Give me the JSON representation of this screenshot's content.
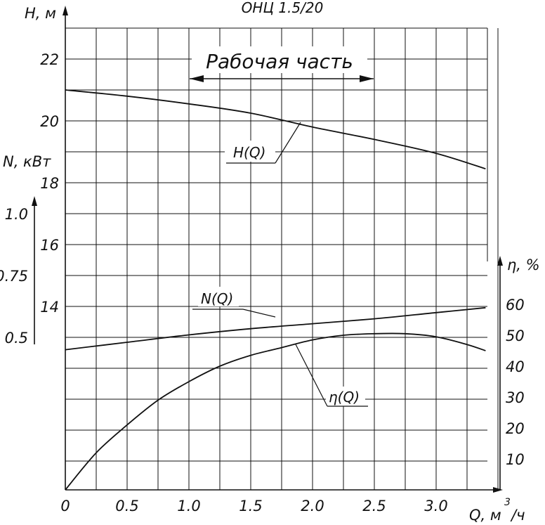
{
  "chart_data": {
    "type": "line",
    "title": "ОНЦ 1.5/20",
    "xlabel": "Q, м³/ч",
    "xlabel_main": "Q, м",
    "xlabel_sup": "3",
    "xlabel_tail": "/ч",
    "x_ticks": [
      "0",
      "0.5",
      "1.0",
      "1.5",
      "2.0",
      "2.5",
      "3.0"
    ],
    "xlim": [
      0,
      3.5
    ],
    "axes": {
      "H": {
        "label": "Н, м",
        "ticks": [
          "14",
          "16",
          "18",
          "20",
          "22"
        ],
        "lim": [
          10,
          23.5
        ]
      },
      "N": {
        "label": "N, кВт",
        "ticks": [
          "0.5",
          "0.75",
          "1.0"
        ],
        "lim": [
          0,
          1.05
        ]
      },
      "eta": {
        "label": "η, %",
        "ticks": [
          "10",
          "20",
          "30",
          "40",
          "50",
          "60"
        ],
        "lim": [
          0,
          70
        ]
      }
    },
    "working_range": {
      "label": "Рабочая часть",
      "from": 1.0,
      "to": 2.5
    },
    "series": [
      {
        "name": "H(Q)",
        "axis": "H",
        "x": [
          0,
          0.5,
          1.0,
          1.5,
          2.0,
          2.5,
          3.0,
          3.4
        ],
        "y": [
          21.0,
          20.8,
          20.55,
          20.25,
          19.8,
          19.4,
          18.95,
          18.45
        ]
      },
      {
        "name": "N(Q)",
        "axis": "N",
        "x": [
          0,
          0.5,
          1.0,
          1.5,
          2.0,
          2.5,
          3.0,
          3.4
        ],
        "y": [
          0.45,
          0.48,
          0.51,
          0.535,
          0.555,
          0.575,
          0.6,
          0.62
        ]
      },
      {
        "name": "η(Q)",
        "axis": "eta",
        "x": [
          0,
          0.25,
          0.5,
          0.75,
          1.0,
          1.25,
          1.5,
          1.75,
          2.0,
          2.25,
          2.5,
          2.75,
          3.0,
          3.25,
          3.4
        ],
        "y": [
          0,
          12,
          21,
          29,
          35,
          40,
          43.5,
          46,
          48.5,
          50,
          50.5,
          50.5,
          49.5,
          47,
          45
        ]
      }
    ]
  }
}
